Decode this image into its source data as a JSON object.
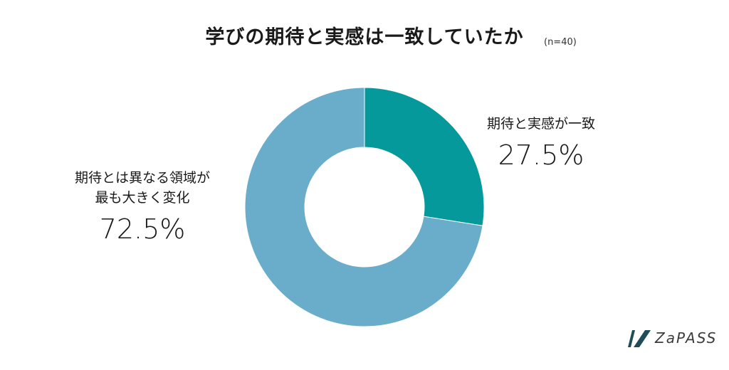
{
  "header": {
    "title": "学びの期待と実感は一致していたか",
    "sample_size": "(n=40)"
  },
  "chart_data": {
    "type": "pie",
    "donut": true,
    "title": "学びの期待と実感は一致していたか",
    "sample_size": "(n=40)",
    "categories": [
      "期待と実感が一致",
      "期待とは異なる領域が\n最も大きく変化"
    ],
    "values": [
      27.5,
      72.5
    ],
    "value_labels": [
      "27.5%",
      "72.5%"
    ],
    "colors": [
      "#05999c",
      "#6aadcb"
    ],
    "start_angle_deg": 0,
    "direction": "clockwise"
  },
  "brand": {
    "logo_text": "ZaPASS",
    "logo_color": "#1f4d56"
  }
}
